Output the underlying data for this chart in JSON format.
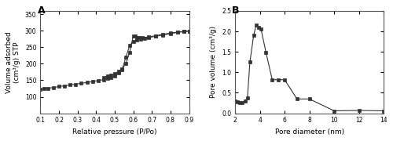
{
  "panel_A": {
    "title": "A",
    "xlabel": "Relative pressure (P/Po)",
    "ylabel": "Volume adsorbed\n(cm³/g) STP",
    "xlim": [
      0.1,
      0.9
    ],
    "ylim": [
      50,
      360
    ],
    "yticks": [
      100,
      150,
      200,
      250,
      300,
      350
    ],
    "xticks": [
      0.1,
      0.2,
      0.3,
      0.4,
      0.5,
      0.6,
      0.7,
      0.8,
      0.9
    ],
    "adsorption_x": [
      0.1,
      0.12,
      0.14,
      0.17,
      0.2,
      0.23,
      0.26,
      0.29,
      0.32,
      0.35,
      0.38,
      0.41,
      0.44,
      0.46,
      0.48,
      0.5,
      0.52,
      0.54,
      0.56,
      0.58,
      0.6,
      0.62,
      0.64,
      0.66,
      0.68,
      0.72,
      0.76,
      0.8,
      0.84,
      0.87,
      0.9
    ],
    "adsorption_y": [
      122,
      124,
      126,
      128,
      131,
      133,
      136,
      138,
      141,
      143,
      146,
      149,
      152,
      155,
      159,
      164,
      172,
      183,
      220,
      255,
      268,
      272,
      275,
      277,
      279,
      283,
      287,
      291,
      295,
      297,
      299
    ],
    "desorption_x": [
      0.9,
      0.87,
      0.84,
      0.8,
      0.76,
      0.72,
      0.68,
      0.65,
      0.63,
      0.62,
      0.61,
      0.6,
      0.58,
      0.56,
      0.54,
      0.52,
      0.5,
      0.48,
      0.46,
      0.44
    ],
    "desorption_y": [
      299,
      298,
      296,
      293,
      289,
      285,
      281,
      279,
      278,
      280,
      283,
      285,
      235,
      200,
      185,
      177,
      170,
      166,
      163,
      158
    ]
  },
  "panel_B": {
    "title": "B",
    "xlabel": "Pore diameter (nm)",
    "ylabel": "Pore volume (cm³/g)",
    "xlim": [
      2,
      14
    ],
    "ylim": [
      0.0,
      2.5
    ],
    "yticks": [
      0.0,
      0.5,
      1.0,
      1.5,
      2.0,
      2.5
    ],
    "xticks": [
      2,
      4,
      6,
      8,
      10,
      12,
      14
    ],
    "x": [
      2.0,
      2.2,
      2.4,
      2.6,
      2.8,
      3.0,
      3.2,
      3.5,
      3.7,
      3.9,
      4.1,
      4.5,
      5.0,
      5.5,
      6.0,
      7.0,
      8.0,
      10.0,
      12.0,
      14.0
    ],
    "y": [
      0.3,
      0.28,
      0.27,
      0.27,
      0.3,
      0.38,
      1.25,
      1.9,
      2.15,
      2.1,
      2.05,
      1.48,
      0.82,
      0.82,
      0.82,
      0.35,
      0.35,
      0.06,
      0.07,
      0.06
    ]
  },
  "line_color": "#333333",
  "marker": "s",
  "markersize": 2.5,
  "linewidth": 0.8,
  "bg_color": "#ffffff",
  "label_fontsize": 6.5,
  "tick_fontsize": 5.5,
  "title_fontsize": 9
}
